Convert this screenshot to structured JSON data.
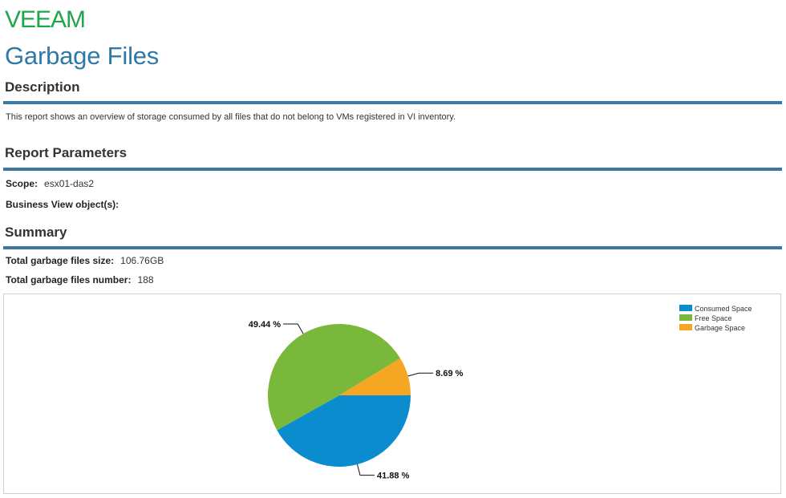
{
  "brand": {
    "logo_text": "VEEAM",
    "color": "#1fa64a"
  },
  "report": {
    "title": "Garbage Files"
  },
  "description": {
    "heading": "Description",
    "text": "This report shows an overview of storage consumed by all files that do not belong to VMs registered in VI inventory."
  },
  "parameters": {
    "heading": "Report Parameters",
    "scope_label": "Scope:",
    "scope_value": "esx01-das2",
    "business_view_label": "Business View object(s):",
    "business_view_value": ""
  },
  "summary": {
    "heading": "Summary",
    "total_size_label": "Total garbage files size:",
    "total_size_value": "106.76GB",
    "total_number_label": "Total garbage files number:",
    "total_number_value": "188"
  },
  "colors": {
    "accent_rule": "#3a78a6",
    "title": "#2f79a8"
  },
  "chart_data": {
    "type": "pie",
    "legend_position": "top-right",
    "slices": [
      {
        "name": "Consumed Space",
        "value": 41.88,
        "label": "41.88 %",
        "color": "#0a8ccf"
      },
      {
        "name": "Free Space",
        "value": 49.44,
        "label": "49.44 %",
        "color": "#79b83a"
      },
      {
        "name": "Garbage Space",
        "value": 8.69,
        "label": "8.69 %",
        "color": "#f5a623"
      }
    ]
  }
}
